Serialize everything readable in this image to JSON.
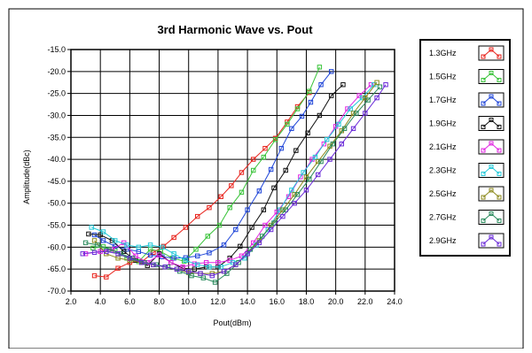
{
  "chart_data": {
    "type": "line",
    "title": "3rd Harmonic Wave vs. Pout",
    "xlabel": "Pout(dBm)",
    "ylabel": "Amplitude(dBc)",
    "xlim": [
      2.0,
      24.0
    ],
    "ylim": [
      -70.0,
      -15.0
    ],
    "xticks": [
      "2.0",
      "4.0",
      "6.0",
      "8.0",
      "10.0",
      "12.0",
      "14.0",
      "16.0",
      "18.0",
      "20.0",
      "22.0",
      "24.0"
    ],
    "yticks": [
      "-15.0",
      "-20.0",
      "-25.0",
      "-30.0",
      "-35.0",
      "-40.0",
      "-45.0",
      "-50.0",
      "-55.0",
      "-60.0",
      "-65.0",
      "-70.0"
    ],
    "grid": true,
    "legend_position": "right",
    "series": [
      {
        "name": "1.3GHz",
        "color": "#e8231c",
        "x": [
          3.6,
          4.4,
          5.2,
          6.0,
          6.8,
          7.6,
          8.3,
          9.0,
          9.8,
          10.6,
          11.4,
          12.2,
          12.9,
          13.6,
          14.4,
          15.2,
          15.9,
          16.7,
          17.4,
          18.2
        ],
        "y": [
          -66.5,
          -66.8,
          -64.8,
          -63.5,
          -63.4,
          -61.2,
          -59.8,
          -57.8,
          -55.5,
          -53.0,
          -51.0,
          -48.5,
          -46.0,
          -43.0,
          -40.0,
          -37.5,
          -35.2,
          -31.5,
          -28.0,
          -24.8
        ]
      },
      {
        "name": "1.5GHz",
        "color": "#39c339",
        "x": [
          3.5,
          4.2,
          5.0,
          5.8,
          6.6,
          7.4,
          8.1,
          8.9,
          9.7,
          10.5,
          11.3,
          12.1,
          12.8,
          13.6,
          14.4,
          15.1,
          15.9,
          16.7,
          17.4,
          18.2,
          18.9
        ],
        "y": [
          -60.2,
          -59.9,
          -60.8,
          -62.5,
          -63.3,
          -60.5,
          -61.0,
          -62.5,
          -63.2,
          -60.5,
          -57.5,
          -55.0,
          -51.0,
          -47.5,
          -42.5,
          -39.5,
          -35.5,
          -32.0,
          -28.5,
          -24.5,
          -19.0
        ]
      },
      {
        "name": "1.7GHz",
        "color": "#1f45d8",
        "x": [
          3.6,
          4.2,
          5.0,
          5.8,
          6.6,
          7.4,
          8.2,
          9.0,
          9.8,
          10.6,
          11.4,
          12.4,
          13.2,
          14.0,
          14.8,
          15.6,
          16.3,
          17.0,
          17.7,
          18.3,
          19.0,
          19.7
        ],
        "y": [
          -57.2,
          -58.5,
          -59.8,
          -60.5,
          -61.0,
          -61.8,
          -62.2,
          -62.5,
          -62.4,
          -62.0,
          -61.3,
          -59.5,
          -56.0,
          -51.5,
          -47.2,
          -42.3,
          -37.5,
          -33.0,
          -30.2,
          -27.0,
          -23.0,
          -20.0
        ]
      },
      {
        "name": "1.9GHz",
        "color": "#111111",
        "x": [
          3.2,
          4.0,
          4.8,
          5.6,
          6.4,
          7.2,
          8.0,
          8.8,
          9.6,
          10.4,
          11.2,
          12.0,
          12.8,
          13.5,
          14.3,
          15.1,
          15.8,
          16.6,
          17.3,
          18.1,
          18.9,
          19.7,
          20.5
        ],
        "y": [
          -57.0,
          -57.2,
          -58.5,
          -61.0,
          -63.0,
          -64.2,
          -61.5,
          -63.5,
          -64.8,
          -65.0,
          -64.5,
          -64.5,
          -62.5,
          -59.8,
          -55.5,
          -51.5,
          -46.5,
          -42.5,
          -38.0,
          -34.0,
          -30.0,
          -25.5,
          -23.0
        ]
      },
      {
        "name": "2.1GHz",
        "color": "#e224e2",
        "x": [
          3.0,
          4.0,
          4.8,
          5.6,
          6.4,
          7.2,
          8.0,
          8.8,
          9.6,
          10.4,
          11.2,
          12.0,
          12.8,
          13.6,
          14.4,
          15.2,
          16.0,
          16.8,
          17.6,
          18.4,
          19.2,
          20.0,
          20.8,
          21.6,
          22.4
        ],
        "y": [
          -61.5,
          -61.0,
          -60.5,
          -59.0,
          -62.0,
          -63.5,
          -61.8,
          -63.5,
          -64.5,
          -63.8,
          -63.5,
          -63.5,
          -63.0,
          -62.0,
          -59.0,
          -55.0,
          -52.0,
          -48.5,
          -44.0,
          -40.0,
          -36.5,
          -32.5,
          -28.5,
          -25.5,
          -23.0
        ]
      },
      {
        "name": "2.3GHz",
        "color": "#26c9d8",
        "x": [
          3.4,
          4.2,
          5.0,
          5.8,
          6.6,
          7.4,
          8.2,
          9.0,
          9.8,
          10.6,
          11.4,
          12.2,
          13.0,
          13.8,
          14.6,
          15.4,
          16.2,
          17.0,
          17.8,
          18.6,
          19.4,
          20.2,
          21.0,
          21.8,
          22.6
        ],
        "y": [
          -55.5,
          -56.5,
          -58.5,
          -59.5,
          -60.0,
          -59.5,
          -60.0,
          -61.5,
          -63.0,
          -64.0,
          -64.5,
          -64.5,
          -63.5,
          -62.5,
          -59.5,
          -56.0,
          -51.5,
          -47.0,
          -43.0,
          -39.5,
          -35.5,
          -32.0,
          -28.5,
          -26.0,
          -23.0
        ]
      },
      {
        "name": "2.5GHz",
        "color": "#8c8a1c",
        "x": [
          3.6,
          4.4,
          5.2,
          6.0,
          6.8,
          7.6,
          8.4,
          9.2,
          10.0,
          10.8,
          11.6,
          12.4,
          13.2,
          14.0,
          14.8,
          15.6,
          16.4,
          17.2,
          18.0,
          18.8,
          19.6,
          20.4,
          21.2,
          22.0,
          22.8
        ],
        "y": [
          -58.5,
          -61.5,
          -62.5,
          -63.0,
          -63.5,
          -64.0,
          -64.5,
          -65.0,
          -65.8,
          -66.0,
          -66.0,
          -65.5,
          -64.0,
          -61.5,
          -58.5,
          -55.0,
          -51.5,
          -48.0,
          -44.0,
          -40.5,
          -37.0,
          -33.5,
          -29.5,
          -26.0,
          -22.5
        ]
      },
      {
        "name": "2.7GHz",
        "color": "#2a8a5c",
        "x": [
          3.0,
          3.8,
          4.6,
          5.4,
          6.2,
          7.0,
          7.8,
          8.6,
          9.4,
          10.2,
          11.0,
          11.8,
          12.6,
          13.4,
          14.2,
          15.0,
          15.8,
          16.6,
          17.4,
          18.2,
          19.0,
          19.8,
          20.6,
          21.4,
          22.2,
          23.0
        ],
        "y": [
          -59.0,
          -59.5,
          -60.5,
          -61.5,
          -62.5,
          -63.5,
          -64.0,
          -64.5,
          -65.5,
          -66.5,
          -67.0,
          -68.0,
          -66.0,
          -63.5,
          -60.5,
          -57.5,
          -54.5,
          -51.5,
          -48.0,
          -44.5,
          -40.5,
          -36.5,
          -33.0,
          -29.5,
          -26.5,
          -23.5
        ]
      },
      {
        "name": "2.9GHz",
        "color": "#6a2ad8",
        "x": [
          2.8,
          3.6,
          4.4,
          5.2,
          6.0,
          6.8,
          7.6,
          8.4,
          9.2,
          10.0,
          10.8,
          11.6,
          12.4,
          13.2,
          14.0,
          14.8,
          15.6,
          16.4,
          17.2,
          18.0,
          18.8,
          19.6,
          20.4,
          21.2,
          22.0,
          22.8,
          23.4
        ],
        "y": [
          -61.5,
          -61.2,
          -61.0,
          -61.5,
          -62.5,
          -63.5,
          -64.0,
          -64.5,
          -65.0,
          -65.5,
          -66.0,
          -66.5,
          -65.5,
          -64.0,
          -61.5,
          -59.0,
          -56.0,
          -53.0,
          -50.0,
          -47.0,
          -43.5,
          -40.0,
          -36.5,
          -33.0,
          -29.5,
          -26.0,
          -23.0
        ]
      }
    ]
  }
}
